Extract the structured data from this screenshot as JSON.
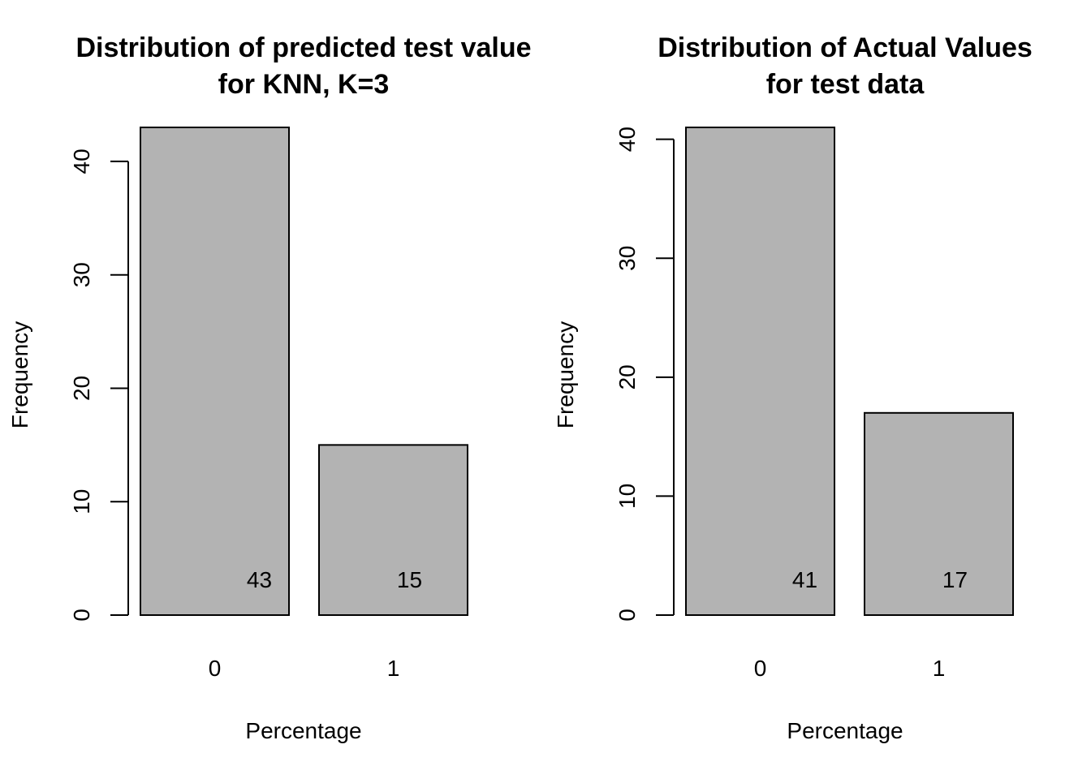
{
  "chart_data": [
    {
      "type": "bar",
      "title_lines": [
        "Distribution of predicted test value",
        "for KNN, K=3"
      ],
      "xlabel": "Percentage",
      "ylabel": "Frequency",
      "categories": [
        "0",
        "1"
      ],
      "values": [
        43,
        15
      ],
      "data_labels": [
        "43",
        "15"
      ],
      "ylim": [
        0,
        43
      ],
      "yticks": [
        0,
        10,
        20,
        30,
        40
      ],
      "ytick_labels": [
        "0",
        "10",
        "20",
        "30",
        "40"
      ],
      "grid": false,
      "bar_color": "#b3b3b3"
    },
    {
      "type": "bar",
      "title_lines": [
        "Distribution of Actual Values",
        "for test data"
      ],
      "xlabel": "Percentage",
      "ylabel": "Frequency",
      "categories": [
        "0",
        "1"
      ],
      "values": [
        41,
        17
      ],
      "data_labels": [
        "41",
        "17"
      ],
      "ylim": [
        0,
        41
      ],
      "yticks": [
        0,
        10,
        20,
        30,
        40
      ],
      "ytick_labels": [
        "0",
        "10",
        "20",
        "30",
        "40"
      ],
      "grid": false,
      "bar_color": "#b3b3b3"
    }
  ]
}
